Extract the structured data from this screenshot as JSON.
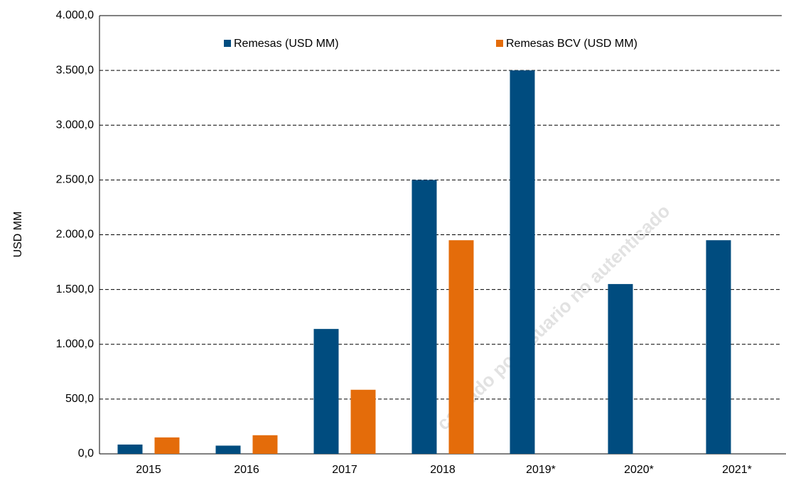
{
  "chart_data": {
    "type": "bar",
    "y_label": "USD MM",
    "categories": [
      "2015",
      "2016",
      "2017",
      "2018",
      "2019*",
      "2020*",
      "2021*"
    ],
    "series": [
      {
        "name": "Remesas (USD MM)",
        "color": "#004c7f",
        "values": [
          85,
          75,
          1140,
          2500,
          3500,
          1550,
          1950
        ]
      },
      {
        "name": "Remesas BCV (USD MM)",
        "color": "#e46c0a",
        "values": [
          150,
          170,
          585,
          1950,
          null,
          null,
          null
        ]
      }
    ],
    "ylim": [
      0,
      4000
    ],
    "yticks": [
      {
        "value": 0,
        "label": "0,0"
      },
      {
        "value": 500,
        "label": "500,0"
      },
      {
        "value": 1000,
        "label": "1.000,0"
      },
      {
        "value": 1500,
        "label": "1.500,0"
      },
      {
        "value": 2000,
        "label": "2.000,0"
      },
      {
        "value": 2500,
        "label": "2.500,0"
      },
      {
        "value": 3000,
        "label": "3.000,0"
      },
      {
        "value": 3500,
        "label": "3.500,0"
      },
      {
        "value": 4000,
        "label": "4.000,0"
      }
    ],
    "grid": true,
    "legend": "top",
    "watermark": "cargado por usuario no autenticado"
  }
}
